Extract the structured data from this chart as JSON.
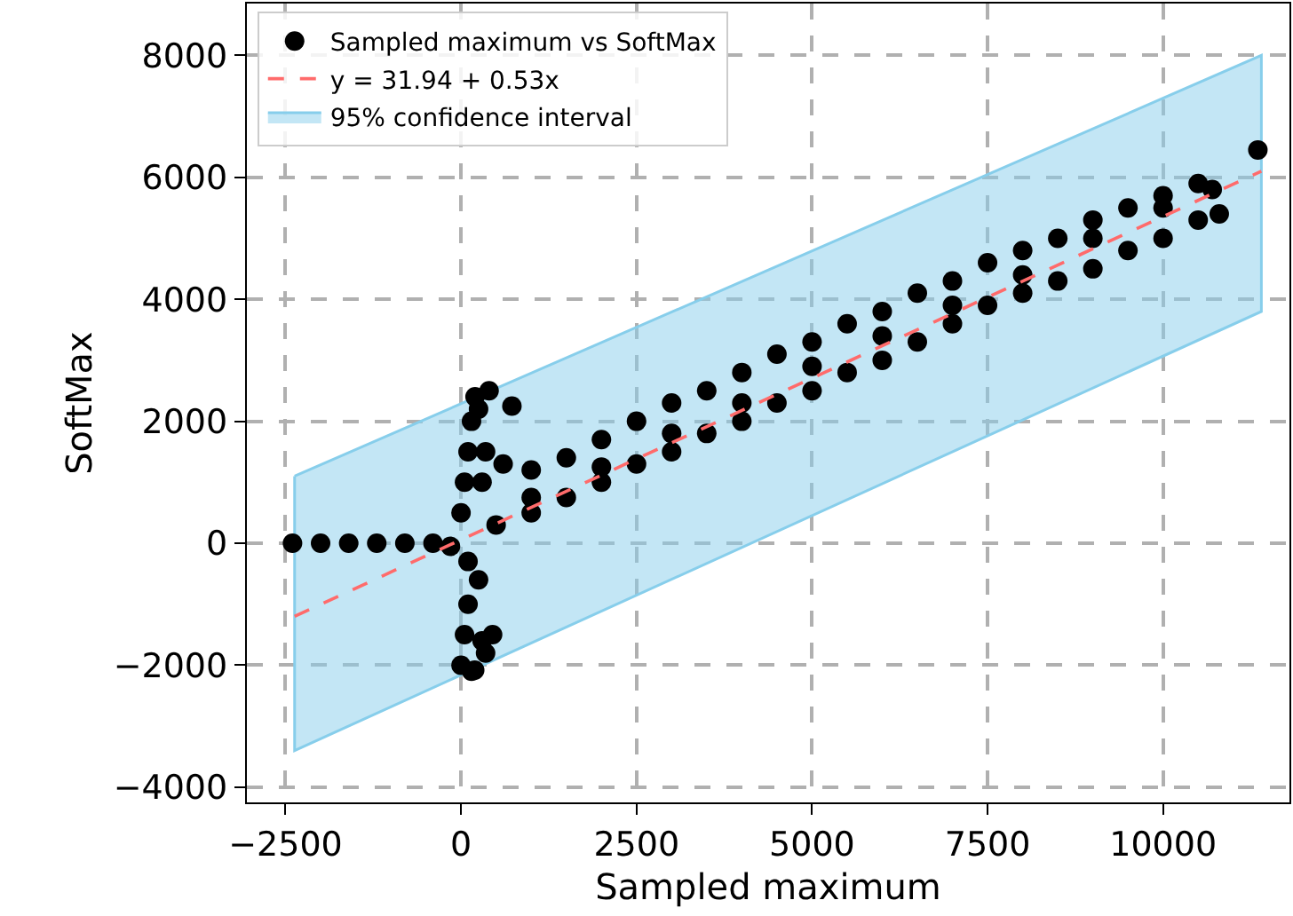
{
  "chart_data": {
    "type": "scatter",
    "xlabel": "Sampled maximum",
    "ylabel": "SoftMax",
    "xlim": [
      -3050,
      11800
    ],
    "ylim": [
      -4250,
      8850
    ],
    "xticks": [
      {
        "value": -2500,
        "label": "−2500"
      },
      0,
      2500,
      5000,
      7500,
      10000
    ],
    "yticks": [
      {
        "value": -4000,
        "label": "−4000"
      },
      {
        "value": -2000,
        "label": "−2000"
      },
      0,
      2000,
      4000,
      6000,
      8000
    ],
    "grid": true,
    "legend": "top left",
    "marker": "circle",
    "series": [
      {
        "name": "Sampled maximum vs SoftMax",
        "color": "#000000",
        "x": [
          -2400,
          -2000,
          -1600,
          -1200,
          -800,
          -400,
          -150,
          0,
          50,
          100,
          150,
          195,
          300,
          350,
          450,
          250,
          100,
          0,
          50,
          100,
          150,
          200,
          400,
          350,
          300,
          250,
          725,
          600,
          1000,
          1500,
          2000,
          2500,
          3000,
          3500,
          4000,
          4500,
          5000,
          5500,
          6000,
          6500,
          7000,
          7500,
          8000,
          8500,
          9000,
          9500,
          10000,
          10500,
          10700,
          500,
          1000,
          1500,
          2000,
          2500,
          3000,
          3500,
          4000,
          4500,
          5000,
          5500,
          6000,
          6500,
          7000,
          7500,
          8000,
          8500,
          9000,
          9500,
          10000,
          10500,
          10800,
          1000,
          2000,
          3000,
          4000,
          5000,
          6000,
          7000,
          8000,
          9000,
          10000,
          11350
        ],
        "values": [
          0,
          0,
          0,
          0,
          0,
          0,
          -50,
          -2000,
          -1500,
          -1000,
          -2100,
          -2080,
          -1600,
          -1800,
          -1500,
          -600,
          -300,
          500,
          1000,
          1500,
          2000,
          2400,
          2500,
          1500,
          1000,
          2200,
          2250,
          1300,
          1200,
          1400,
          1700,
          2000,
          2300,
          2500,
          2800,
          3100,
          3300,
          3600,
          3800,
          4100,
          4300,
          4600,
          4800,
          5000,
          5300,
          5500,
          5700,
          5900,
          5800,
          300,
          500,
          750,
          1000,
          1300,
          1500,
          1800,
          2000,
          2300,
          2500,
          2800,
          3000,
          3300,
          3600,
          3900,
          4100,
          4300,
          4500,
          4800,
          5000,
          5300,
          5400,
          750,
          1250,
          1800,
          2300,
          2900,
          3400,
          3900,
          4400,
          5000,
          5500,
          6450
        ]
      },
      {
        "name": "y = 31.94 + 0.53x",
        "type": "line",
        "line_style": "dashed",
        "marker": "none",
        "color": "#ff6b6b",
        "x": [
          -2370,
          11400
        ],
        "values": [
          -1200,
          6100
        ],
        "lower": [
          -3400,
          3800
        ],
        "upper": [
          1100,
          8000
        ]
      },
      {
        "name": "95% confidence interval",
        "type": "area",
        "color": "#87ceeb"
      }
    ]
  }
}
